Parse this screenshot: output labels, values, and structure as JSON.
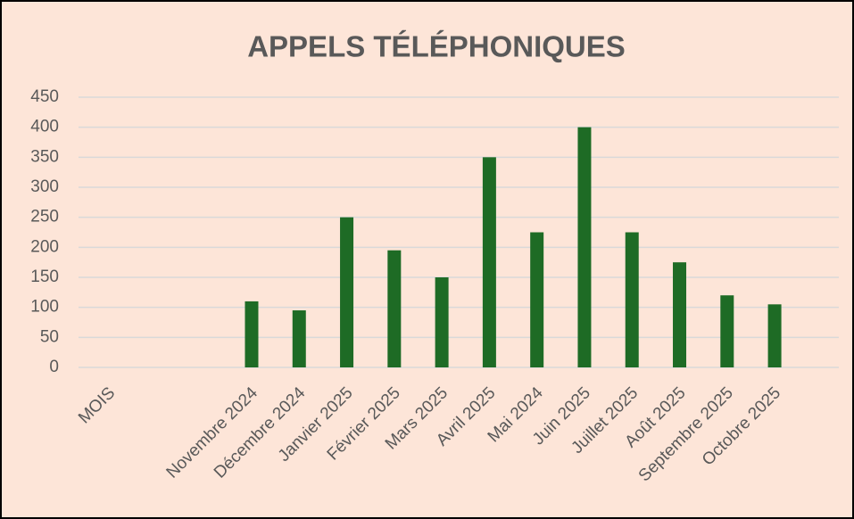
{
  "chart_data": {
    "type": "bar",
    "title": "APPELS TÉLÉPHONIQUES",
    "categories": [
      "MOIS",
      null,
      null,
      "Novembre 2024",
      "Décembre 2024",
      "Janvier 2025",
      "Février 2025",
      "Mars 2025",
      "Avril 2025",
      "Mai 2024",
      "Juin 2025",
      "Juillet 2025",
      "Août 2025",
      "Septembre 2025",
      "Octobre 2025",
      null
    ],
    "values": [
      null,
      null,
      null,
      110,
      95,
      250,
      195,
      150,
      350,
      225,
      400,
      225,
      175,
      120,
      105,
      null
    ],
    "color": "#1e6b25",
    "ylim": [
      0,
      450
    ],
    "yticks": [
      0,
      50,
      100,
      150,
      200,
      250,
      300,
      350,
      400,
      450
    ],
    "grid": true
  }
}
